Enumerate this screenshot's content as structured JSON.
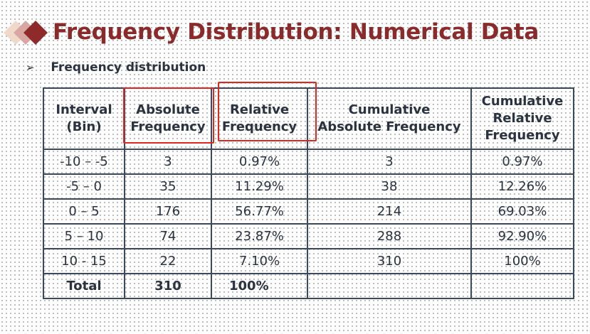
{
  "slide": {
    "title": "Frequency Distribution: Numerical Data",
    "bullet_marker": "➢",
    "bullet_text": "Frequency distribution",
    "highlight_color": "#e0261f",
    "title_color": "#8b2a2a"
  },
  "table": {
    "headers": [
      "Interval\n(Bin)",
      "Absolute\nFrequency",
      "Relative\nFrequency",
      "Cumulative\nAbsolute Frequency",
      "Cumulative\nRelative\nFrequency"
    ],
    "rows": [
      [
        "-10 – -5",
        "3",
        "0.97%",
        "3",
        "0.97%"
      ],
      [
        "-5 – 0",
        "35",
        "11.29%",
        "38",
        "12.26%"
      ],
      [
        "0 – 5",
        "176",
        "56.77%",
        "214",
        "69.03%"
      ],
      [
        "5 – 10",
        "74",
        "23.87%",
        "288",
        "92.90%"
      ],
      [
        "10 - 15",
        "22",
        "7.10%",
        "310",
        "100%"
      ]
    ],
    "total": [
      "Total",
      "310",
      "100%",
      "",
      ""
    ]
  }
}
